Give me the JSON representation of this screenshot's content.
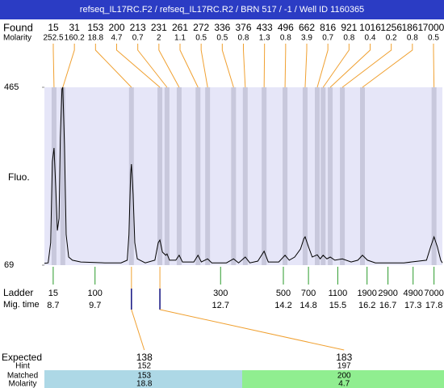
{
  "title": "refseq_IL17RC.F2 / refseq_IL17RC.R2 / BRN 517 / -1 / Well ID 1160365",
  "found": {
    "label": "Found",
    "molarity_label": "Molarity",
    "peaks": [
      {
        "size": 15,
        "molarity": 252.5,
        "time": 8.72
      },
      {
        "size": 31,
        "molarity": 160.2,
        "time": 8.93
      },
      {
        "size": 153,
        "molarity": 18.8,
        "time": 10.57
      },
      {
        "size": 200,
        "molarity": 4.7,
        "time": 11.25
      },
      {
        "size": 213,
        "molarity": 0.7,
        "time": 11.42
      },
      {
        "size": 231,
        "molarity": 2,
        "time": 11.71
      },
      {
        "size": 261,
        "molarity": 1.1,
        "time": 12.16
      },
      {
        "size": 272,
        "molarity": 0.5,
        "time": 12.39
      },
      {
        "size": 336,
        "molarity": 0.5,
        "time": 13.01
      },
      {
        "size": 376,
        "molarity": 0.8,
        "time": 13.29
      },
      {
        "size": 433,
        "molarity": 1.3,
        "time": 13.74
      },
      {
        "size": 496,
        "molarity": 0.8,
        "time": 14.24
      },
      {
        "size": 662,
        "molarity": 3.9,
        "time": 14.72
      },
      {
        "size": 816,
        "molarity": 0.7,
        "time": 15.01
      },
      {
        "size": 921,
        "molarity": 0.8,
        "time": 15.15
      },
      {
        "size": 1016,
        "molarity": 0.4,
        "time": 15.32
      },
      {
        "size": 1256,
        "molarity": 0.2,
        "time": 15.61
      },
      {
        "size": 1861,
        "molarity": 0.8,
        "time": 16.09
      },
      {
        "size": 7000,
        "molarity": 0.5,
        "time": 17.8
      }
    ]
  },
  "chart_data": {
    "type": "line",
    "y_label": "Fluo.",
    "color": "#000000",
    "xlim": [
      8.49,
      18.0
    ],
    "ylim": [
      69,
      465
    ],
    "yticks": [
      465,
      69
    ],
    "x": [
      8.49,
      8.58,
      8.64,
      8.68,
      8.72,
      8.76,
      8.8,
      8.84,
      8.87,
      8.91,
      8.93,
      8.97,
      9.01,
      9.07,
      9.16,
      9.36,
      9.94,
      10.32,
      10.47,
      10.51,
      10.55,
      10.57,
      10.61,
      10.65,
      10.71,
      10.9,
      11.13,
      11.21,
      11.25,
      11.31,
      11.39,
      11.42,
      11.48,
      11.63,
      11.71,
      11.79,
      12.06,
      12.16,
      12.24,
      12.39,
      12.49,
      12.84,
      13.01,
      13.13,
      13.29,
      13.4,
      13.59,
      13.74,
      13.84,
      14.09,
      14.24,
      14.34,
      14.47,
      14.61,
      14.69,
      14.72,
      14.8,
      14.89,
      15.01,
      15.08,
      15.15,
      15.24,
      15.32,
      15.43,
      15.61,
      15.82,
      15.98,
      16.09,
      16.21,
      16.4,
      17.08,
      17.62,
      17.72,
      17.8,
      17.88,
      17.96,
      18.0
    ],
    "values": [
      73,
      74,
      119,
      299,
      330,
      245,
      146,
      173,
      353,
      461,
      465,
      335,
      137,
      87,
      80,
      76,
      74,
      74,
      80,
      137,
      272,
      294,
      227,
      119,
      83,
      74,
      80,
      119,
      125,
      98,
      91,
      94,
      80,
      80,
      91,
      76,
      76,
      91,
      76,
      83,
      74,
      74,
      83,
      74,
      87,
      74,
      78,
      100,
      76,
      76,
      91,
      80,
      87,
      105,
      128,
      132,
      110,
      87,
      92,
      83,
      91,
      83,
      87,
      80,
      83,
      76,
      80,
      91,
      80,
      74,
      74,
      80,
      110,
      132,
      110,
      80,
      74
    ]
  },
  "ladder": {
    "label": "Ladder",
    "time_label": "Mig. time",
    "sizes": [
      15,
      100,
      300,
      500,
      700,
      1100,
      1900,
      2900,
      4900,
      7000
    ],
    "times": [
      8.7,
      9.7,
      12.7,
      14.2,
      14.8,
      15.5,
      16.2,
      16.7,
      17.3,
      17.8
    ]
  },
  "expected": {
    "labels": [
      "Expected",
      "Hint",
      "Matched",
      "Molarity"
    ],
    "columns": [
      {
        "expected": 138,
        "hint": 152,
        "matched": 153,
        "molarity": 18.8
      },
      {
        "expected": 183,
        "hint": 197,
        "matched": 200,
        "molarity": 4.7
      }
    ]
  }
}
